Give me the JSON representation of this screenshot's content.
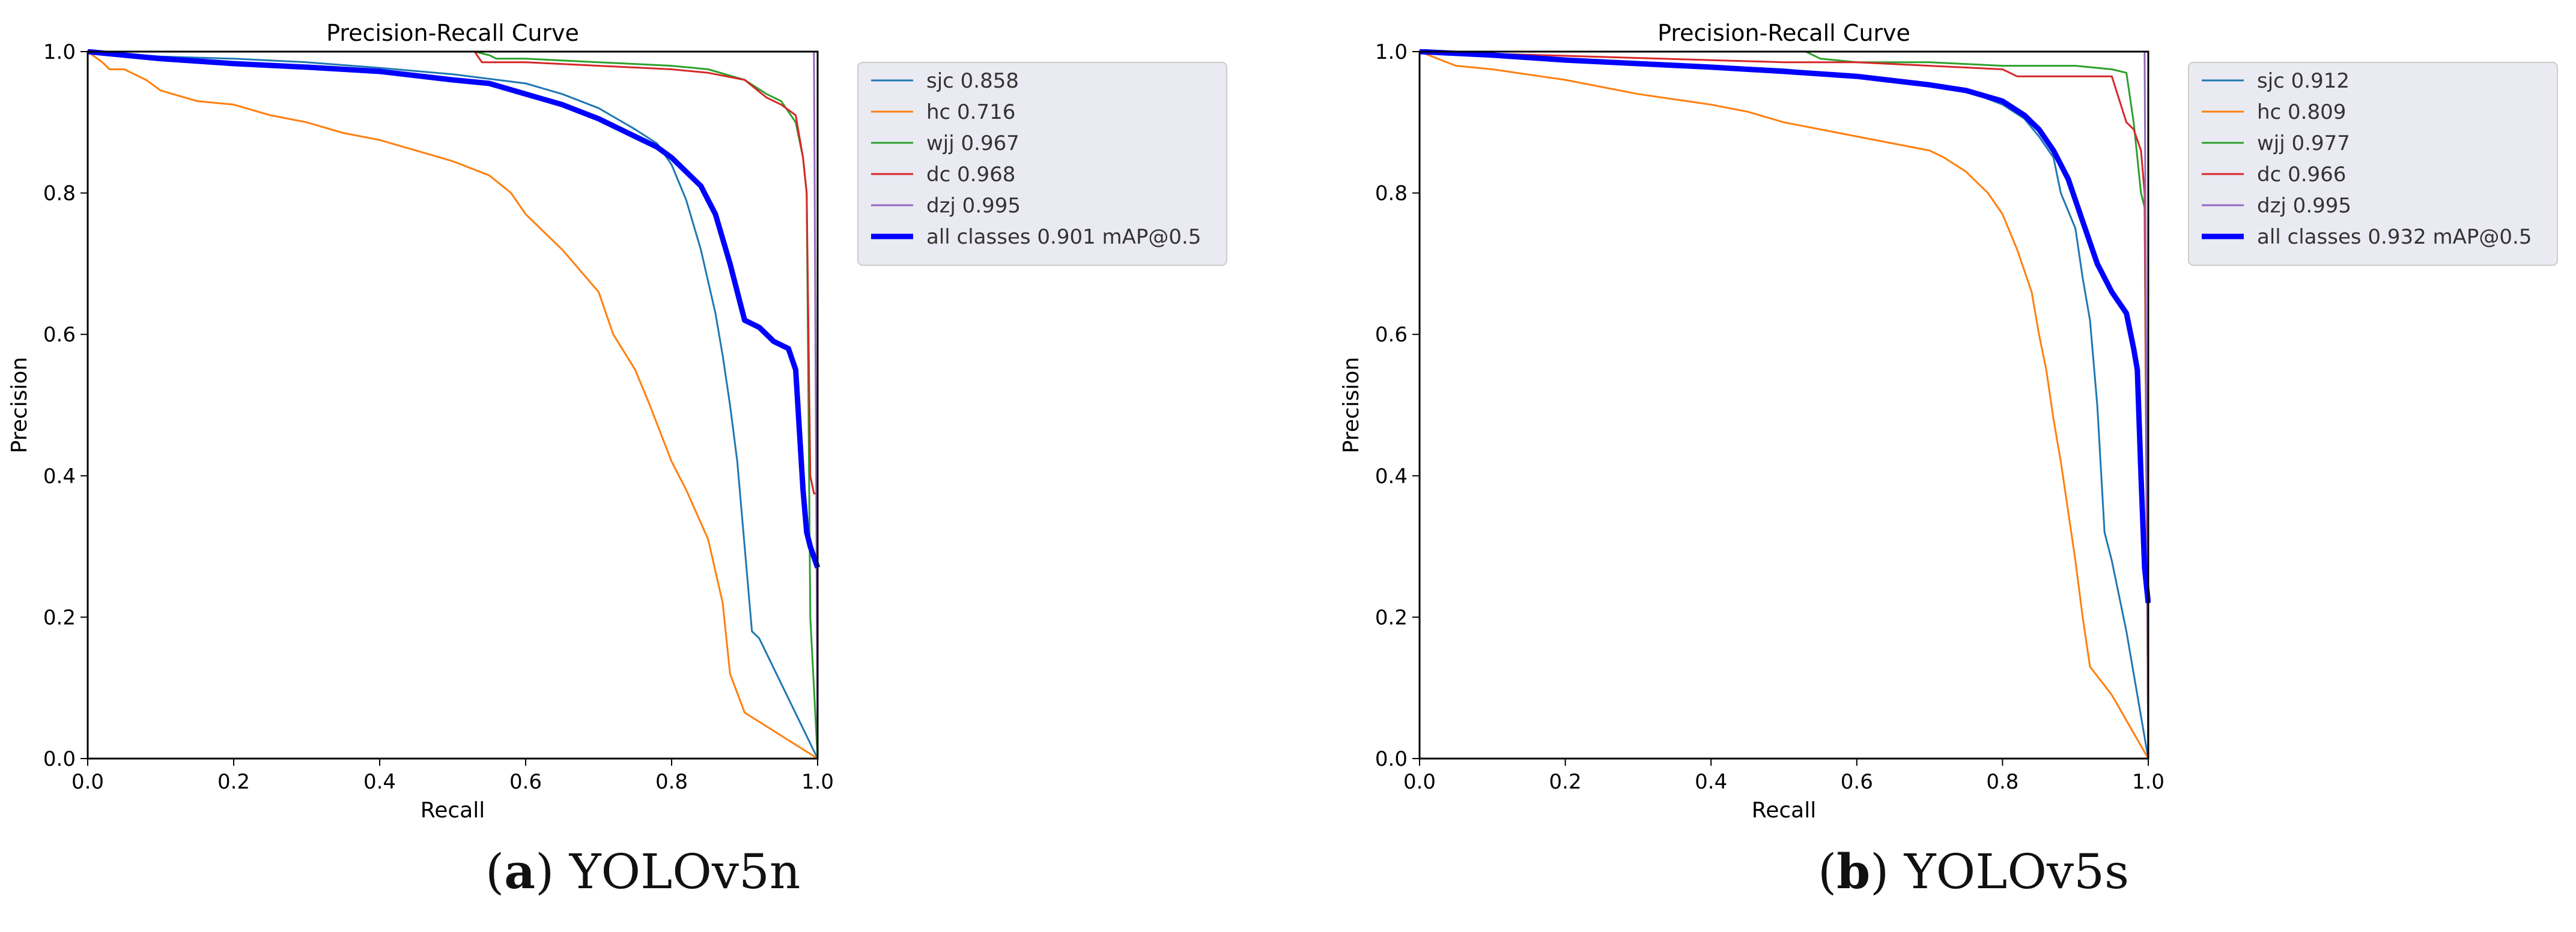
{
  "chart_data": [
    {
      "type": "line",
      "title": "Precision-Recall Curve",
      "xlabel": "Recall",
      "ylabel": "Precision",
      "xlim": [
        0,
        1
      ],
      "ylim": [
        0,
        1
      ],
      "xticks": [
        "0.0",
        "0.2",
        "0.4",
        "0.6",
        "0.8",
        "1.0"
      ],
      "yticks": [
        "0.0",
        "0.2",
        "0.4",
        "0.6",
        "0.8",
        "1.0"
      ],
      "grid": false,
      "legend_position": "outside-right-top",
      "series": [
        {
          "name": "sjc 0.858",
          "color": "#1f77b4",
          "bold": false,
          "x": [
            0,
            0.1,
            0.2,
            0.3,
            0.4,
            0.5,
            0.6,
            0.65,
            0.7,
            0.75,
            0.78,
            0.8,
            0.82,
            0.84,
            0.86,
            0.87,
            0.88,
            0.89,
            0.9,
            0.91,
            0.92,
            1.0
          ],
          "y": [
            1.0,
            0.993,
            0.99,
            0.985,
            0.977,
            0.968,
            0.955,
            0.94,
            0.92,
            0.89,
            0.87,
            0.84,
            0.79,
            0.72,
            0.63,
            0.57,
            0.5,
            0.42,
            0.3,
            0.18,
            0.17,
            0.0
          ]
        },
        {
          "name": "hc 0.716",
          "color": "#ff7f0e",
          "bold": false,
          "x": [
            0,
            0.02,
            0.03,
            0.05,
            0.08,
            0.1,
            0.15,
            0.2,
            0.25,
            0.3,
            0.35,
            0.4,
            0.45,
            0.5,
            0.55,
            0.58,
            0.6,
            0.62,
            0.65,
            0.7,
            0.72,
            0.75,
            0.77,
            0.8,
            0.82,
            0.85,
            0.87,
            0.88,
            0.9,
            1.0
          ],
          "y": [
            1.0,
            0.985,
            0.975,
            0.975,
            0.96,
            0.945,
            0.93,
            0.925,
            0.91,
            0.9,
            0.885,
            0.875,
            0.86,
            0.845,
            0.825,
            0.8,
            0.77,
            0.75,
            0.72,
            0.66,
            0.6,
            0.55,
            0.5,
            0.42,
            0.38,
            0.31,
            0.22,
            0.12,
            0.065,
            0.0
          ]
        },
        {
          "name": "wjj 0.967",
          "color": "#2ca02c",
          "bold": false,
          "x": [
            0,
            0.53,
            0.55,
            0.56,
            0.6,
            0.7,
            0.8,
            0.85,
            0.9,
            0.93,
            0.95,
            0.97,
            0.98,
            0.985,
            0.99,
            1.0
          ],
          "y": [
            1.0,
            1.0,
            0.995,
            0.99,
            0.99,
            0.985,
            0.98,
            0.975,
            0.96,
            0.94,
            0.93,
            0.9,
            0.85,
            0.8,
            0.2,
            0.0
          ]
        },
        {
          "name": "dc 0.968",
          "color": "#d62728",
          "bold": false,
          "x": [
            0,
            0.53,
            0.54,
            0.56,
            0.6,
            0.7,
            0.8,
            0.85,
            0.9,
            0.93,
            0.95,
            0.97,
            0.98,
            0.985,
            0.99,
            0.995,
            1.0
          ],
          "y": [
            1.0,
            1.0,
            0.985,
            0.985,
            0.985,
            0.98,
            0.975,
            0.97,
            0.96,
            0.935,
            0.925,
            0.91,
            0.85,
            0.8,
            0.4,
            0.375,
            0.375
          ]
        },
        {
          "name": "dzj 0.995",
          "color": "#9467bd",
          "bold": false,
          "x": [
            0,
            0.995,
            1.0
          ],
          "y": [
            1.0,
            1.0,
            0.0
          ]
        },
        {
          "name": "all classes 0.901 mAP@0.5",
          "color": "#0000ff",
          "bold": true,
          "x": [
            0,
            0.1,
            0.2,
            0.3,
            0.4,
            0.5,
            0.55,
            0.6,
            0.65,
            0.7,
            0.75,
            0.78,
            0.8,
            0.82,
            0.84,
            0.86,
            0.88,
            0.9,
            0.92,
            0.94,
            0.96,
            0.97,
            0.98,
            0.985,
            0.99,
            1.0
          ],
          "y": [
            1.0,
            0.99,
            0.983,
            0.978,
            0.972,
            0.96,
            0.955,
            0.94,
            0.925,
            0.905,
            0.88,
            0.865,
            0.85,
            0.83,
            0.81,
            0.77,
            0.7,
            0.62,
            0.61,
            0.59,
            0.58,
            0.55,
            0.38,
            0.32,
            0.3,
            0.27
          ]
        }
      ]
    },
    {
      "type": "line",
      "title": "Precision-Recall Curve",
      "xlabel": "Recall",
      "ylabel": "Precision",
      "xlim": [
        0,
        1
      ],
      "ylim": [
        0,
        1
      ],
      "xticks": [
        "0.0",
        "0.2",
        "0.4",
        "0.6",
        "0.8",
        "1.0"
      ],
      "yticks": [
        "0.0",
        "0.2",
        "0.4",
        "0.6",
        "0.8",
        "1.0"
      ],
      "grid": false,
      "legend_position": "outside-right-top",
      "series": [
        {
          "name": "sjc 0.912",
          "color": "#1f77b4",
          "bold": false,
          "x": [
            0,
            0.1,
            0.2,
            0.3,
            0.4,
            0.5,
            0.6,
            0.7,
            0.75,
            0.8,
            0.83,
            0.85,
            0.87,
            0.88,
            0.9,
            0.91,
            0.92,
            0.93,
            0.94,
            0.95,
            0.97,
            1.0
          ],
          "y": [
            1.0,
            0.995,
            0.99,
            0.985,
            0.98,
            0.975,
            0.965,
            0.955,
            0.945,
            0.925,
            0.905,
            0.88,
            0.85,
            0.8,
            0.75,
            0.68,
            0.62,
            0.5,
            0.32,
            0.28,
            0.18,
            0.0
          ]
        },
        {
          "name": "hc 0.809",
          "color": "#ff7f0e",
          "bold": false,
          "x": [
            0,
            0.05,
            0.1,
            0.2,
            0.3,
            0.4,
            0.45,
            0.5,
            0.55,
            0.6,
            0.65,
            0.7,
            0.72,
            0.75,
            0.78,
            0.8,
            0.82,
            0.84,
            0.85,
            0.86,
            0.87,
            0.88,
            0.89,
            0.9,
            0.91,
            0.92,
            0.95,
            1.0
          ],
          "y": [
            1.0,
            0.98,
            0.975,
            0.96,
            0.94,
            0.925,
            0.915,
            0.9,
            0.89,
            0.88,
            0.87,
            0.86,
            0.85,
            0.83,
            0.8,
            0.77,
            0.72,
            0.66,
            0.6,
            0.55,
            0.48,
            0.42,
            0.35,
            0.28,
            0.2,
            0.13,
            0.09,
            0.0
          ]
        },
        {
          "name": "wjj 0.977",
          "color": "#2ca02c",
          "bold": false,
          "x": [
            0,
            0.53,
            0.55,
            0.6,
            0.7,
            0.8,
            0.9,
            0.95,
            0.97,
            0.98,
            0.99,
            0.995,
            1.0
          ],
          "y": [
            1.0,
            1.0,
            0.99,
            0.985,
            0.985,
            0.98,
            0.98,
            0.975,
            0.97,
            0.9,
            0.8,
            0.78,
            0.0
          ]
        },
        {
          "name": "dc 0.966",
          "color": "#d62728",
          "bold": false,
          "x": [
            0,
            0.5,
            0.6,
            0.7,
            0.8,
            0.82,
            0.9,
            0.95,
            0.97,
            0.98,
            0.99,
            0.995,
            1.0
          ],
          "y": [
            1.0,
            0.985,
            0.985,
            0.98,
            0.975,
            0.965,
            0.965,
            0.965,
            0.9,
            0.89,
            0.86,
            0.8,
            0.0
          ]
        },
        {
          "name": "dzj 0.995",
          "color": "#9467bd",
          "bold": false,
          "x": [
            0,
            0.995,
            1.0
          ],
          "y": [
            1.0,
            1.0,
            0.0
          ]
        },
        {
          "name": "all classes 0.932 mAP@0.5",
          "color": "#0000ff",
          "bold": true,
          "x": [
            0,
            0.1,
            0.2,
            0.3,
            0.4,
            0.5,
            0.6,
            0.7,
            0.75,
            0.8,
            0.83,
            0.85,
            0.87,
            0.89,
            0.91,
            0.93,
            0.95,
            0.97,
            0.98,
            0.985,
            0.99,
            0.995,
            1.0
          ],
          "y": [
            1.0,
            0.995,
            0.988,
            0.983,
            0.978,
            0.972,
            0.965,
            0.953,
            0.945,
            0.93,
            0.91,
            0.89,
            0.86,
            0.82,
            0.76,
            0.7,
            0.66,
            0.63,
            0.58,
            0.55,
            0.4,
            0.27,
            0.22
          ]
        }
      ]
    }
  ],
  "captions": [
    {
      "open": "(",
      "letter": "a",
      "rest": ") YOLOv5n"
    },
    {
      "open": "(",
      "letter": "b",
      "rest": ") YOLOv5s"
    }
  ]
}
